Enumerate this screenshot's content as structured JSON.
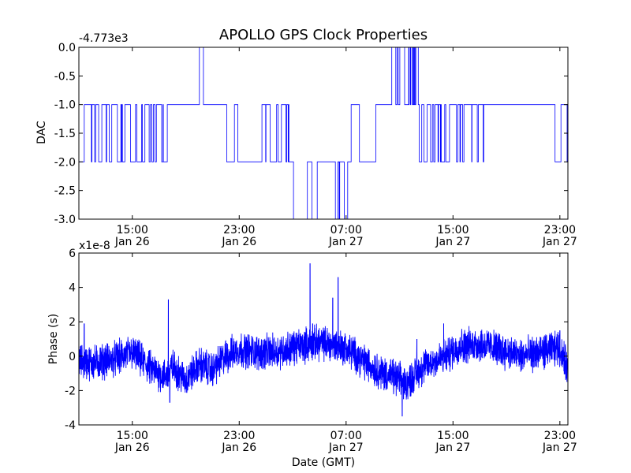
{
  "chart_data": [
    {
      "type": "line",
      "title": "APOLLO GPS Clock Properties",
      "xlabel": "",
      "ylabel": "DAC",
      "offset_label": "-4.773e3",
      "y_offset": -4773,
      "ylim": [
        -3.0,
        0.0
      ],
      "yticks": [
        "0.0",
        "-0.5",
        "-1.0",
        "-1.5",
        "-2.0",
        "-2.5",
        "-3.0"
      ],
      "ytick_values": [
        0.0,
        -0.5,
        -1.0,
        -1.5,
        -2.0,
        -2.5,
        -3.0
      ],
      "xlim": [
        "Jan 26 11:00",
        "Jan 27 23:40"
      ],
      "xticks": [
        {
          "time": "15:00",
          "date": "Jan 26",
          "hour": 15
        },
        {
          "time": "23:00",
          "date": "Jan 26",
          "hour": 23
        },
        {
          "time": "07:00",
          "date": "Jan 27",
          "hour": 31
        },
        {
          "time": "15:00",
          "date": "Jan 27",
          "hour": 39
        },
        {
          "time": "23:00",
          "date": "Jan 27",
          "hour": 47
        }
      ],
      "x_hour_range": [
        11.0,
        47.6
      ],
      "line_color": "#0000ff",
      "grid": false,
      "legend": "none"
    },
    {
      "type": "line",
      "title": "",
      "xlabel": "Date (GMT)",
      "ylabel": "Phase (s)",
      "offset_label": "x1e-8",
      "ylim": [
        -4,
        6
      ],
      "yticks": [
        "6",
        "4",
        "2",
        "0",
        "-2",
        "-4"
      ],
      "ytick_values": [
        6,
        4,
        2,
        0,
        -2,
        -4
      ],
      "xlim": [
        "Jan 26 11:00",
        "Jan 27 23:40"
      ],
      "xticks": [
        {
          "time": "15:00",
          "date": "Jan 26",
          "hour": 15
        },
        {
          "time": "23:00",
          "date": "Jan 26",
          "hour": 23
        },
        {
          "time": "07:00",
          "date": "Jan 27",
          "hour": 31
        },
        {
          "time": "15:00",
          "date": "Jan 27",
          "hour": 39
        },
        {
          "time": "23:00",
          "date": "Jan 27",
          "hour": 47
        }
      ],
      "x_hour_range": [
        11.0,
        47.6
      ],
      "trend": {
        "hours": [
          11.0,
          12.0,
          13.5,
          15.0,
          16.5,
          17.5,
          18.0,
          19.0,
          20.0,
          21.0,
          22.0,
          23.0,
          24.5,
          26.0,
          27.5,
          29.0,
          30.5,
          31.5,
          32.5,
          33.5,
          34.5,
          35.5,
          36.5,
          37.5,
          38.5,
          39.5,
          41.0,
          42.5,
          44.0,
          45.5,
          47.0,
          47.6
        ],
        "values": [
          -0.3,
          -0.4,
          -0.2,
          0.2,
          -0.8,
          -1.2,
          -0.6,
          -1.4,
          -0.5,
          -0.8,
          0.0,
          0.4,
          0.2,
          0.3,
          0.6,
          0.8,
          0.6,
          0.2,
          -0.4,
          -0.9,
          -1.2,
          -1.6,
          -0.8,
          -0.3,
          0.0,
          0.6,
          0.7,
          0.4,
          0.0,
          0.2,
          0.5,
          -0.8
        ]
      },
      "spikes": [
        {
          "hour": 17.7,
          "value": 3.3
        },
        {
          "hour": 17.8,
          "value": -2.7
        },
        {
          "hour": 11.4,
          "value": 1.9
        },
        {
          "hour": 28.3,
          "value": 5.4
        },
        {
          "hour": 28.5,
          "value": 1.9
        },
        {
          "hour": 30.4,
          "value": 4.6
        },
        {
          "hour": 30.0,
          "value": 3.4
        },
        {
          "hour": 35.2,
          "value": -3.5
        },
        {
          "hour": 35.3,
          "value": -2.5
        },
        {
          "hour": 36.3,
          "value": 1.0
        },
        {
          "hour": 38.3,
          "value": 1.9
        },
        {
          "hour": 47.0,
          "value": 1.5
        }
      ],
      "line_color": "#0000ff",
      "grid": false,
      "legend": "none"
    }
  ]
}
